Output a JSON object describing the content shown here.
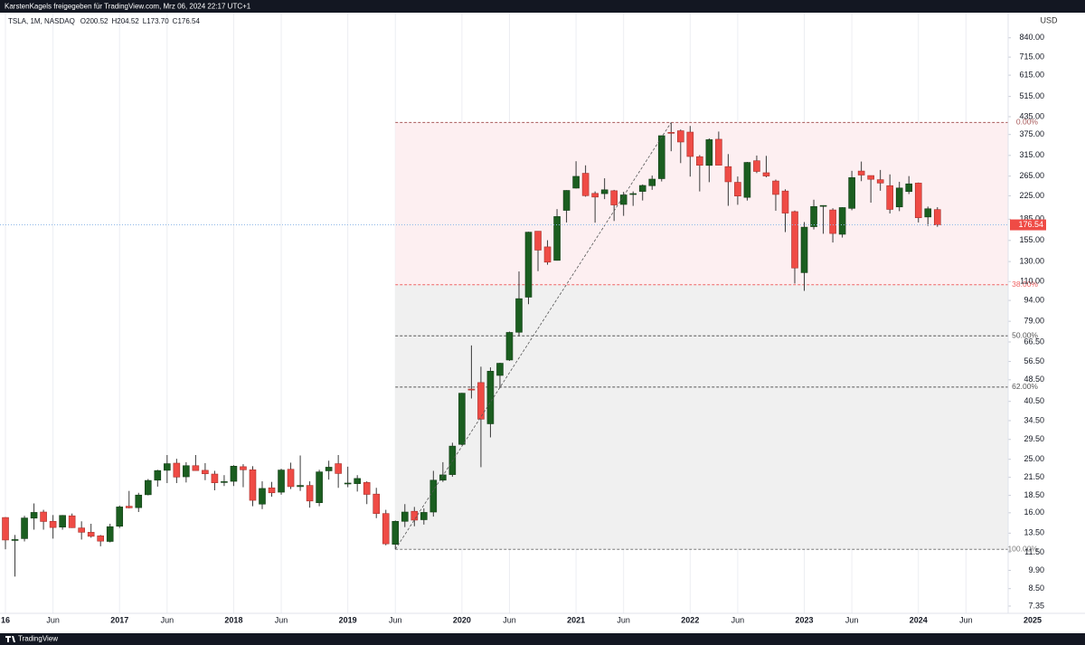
{
  "chart_data": {
    "type": "candlestick",
    "attribution": "KarstenKagels freigegeben für TradingView.com, Mrz 06, 2024 22:17 UTC+1",
    "brand": "TradingView",
    "symbol": "TSLA, 1M, NASDAQ",
    "ohlc_legend": [
      "O200.52",
      "H204.52",
      "L173.70",
      "C176.54"
    ],
    "currency": "USD",
    "x": [
      "2016-01",
      "2016-02",
      "2016-03",
      "2016-04",
      "2016-05",
      "2016-06",
      "2016-07",
      "2016-08",
      "2016-09",
      "2016-10",
      "2016-11",
      "2016-12",
      "2017-01",
      "2017-02",
      "2017-03",
      "2017-04",
      "2017-05",
      "2017-06",
      "2017-07",
      "2017-08",
      "2017-09",
      "2017-10",
      "2017-11",
      "2017-12",
      "2018-01",
      "2018-02",
      "2018-03",
      "2018-04",
      "2018-05",
      "2018-06",
      "2018-07",
      "2018-08",
      "2018-09",
      "2018-10",
      "2018-11",
      "2018-12",
      "2019-01",
      "2019-02",
      "2019-03",
      "2019-04",
      "2019-05",
      "2019-06",
      "2019-07",
      "2019-08",
      "2019-09",
      "2019-10",
      "2019-11",
      "2019-12",
      "2020-01",
      "2020-02",
      "2020-03",
      "2020-04",
      "2020-05",
      "2020-06",
      "2020-07",
      "2020-08",
      "2020-09",
      "2020-10",
      "2020-11",
      "2020-12",
      "2021-01",
      "2021-02",
      "2021-03",
      "2021-04",
      "2021-05",
      "2021-06",
      "2021-07",
      "2021-08",
      "2021-09",
      "2021-10",
      "2021-11",
      "2021-12",
      "2022-01",
      "2022-02",
      "2022-03",
      "2022-04",
      "2022-05",
      "2022-06",
      "2022-07",
      "2022-08",
      "2022-09",
      "2022-10",
      "2022-11",
      "2022-12",
      "2023-01",
      "2023-02",
      "2023-03",
      "2023-04",
      "2023-05",
      "2023-06",
      "2023-07",
      "2023-08",
      "2023-09",
      "2023-10",
      "2023-11",
      "2023-12",
      "2024-01",
      "2024-02",
      "2024-03"
    ],
    "open": [
      15.38,
      12.7,
      12.9,
      15.3,
      16.1,
      14.9,
      14.2,
      15.6,
      14.1,
      13.6,
      13.2,
      12.6,
      14.3,
      16.9,
      16.7,
      18.6,
      21.0,
      22.8,
      24.2,
      21.6,
      23.7,
      22.8,
      22.1,
      20.6,
      20.8,
      23.5,
      22.9,
      17.2,
      19.7,
      19.0,
      23.0,
      19.9,
      20.1,
      17.4,
      22.7,
      24.1,
      20.4,
      20.4,
      20.6,
      18.7,
      15.9,
      12.3,
      14.9,
      16.2,
      15.1,
      16.1,
      21.0,
      22.0,
      28.3,
      44.9,
      47.4,
      33.6,
      50.3,
      57.2,
      72.1,
      96.6,
      167.4,
      146.9,
      131.3,
      199.2,
      239.8,
      271.4,
      229.5,
      229.0,
      234.6,
      209.3,
      227.9,
      233.3,
      244.7,
      259.5,
      381.7,
      386.9,
      382.6,
      311.7,
      289.9,
      360.4,
      286.9,
      251.7,
      222.0,
      301.3,
      272.6,
      254.5,
      234.1,
      197.1,
      118.5,
      173.9,
      206.2,
      199.9,
      163.2,
      202.6,
      276.5,
      266.3,
      257.3,
      244.8,
      205.0,
      233.1,
      250.1,
      188.5,
      200.52
    ],
    "high": [
      15.43,
      13.3,
      15.6,
      17.3,
      16.4,
      15.7,
      15.7,
      15.9,
      14.9,
      14.6,
      13.3,
      14.6,
      17.0,
      19.2,
      18.9,
      21.2,
      22.9,
      25.9,
      25.1,
      24.4,
      25.9,
      24.2,
      22.7,
      21.9,
      23.8,
      24.0,
      23.6,
      20.8,
      20.7,
      23.1,
      24.3,
      25.8,
      20.8,
      22.9,
      24.7,
      25.9,
      23.5,
      21.9,
      20.8,
      19.7,
      16.4,
      15.0,
      17.2,
      16.8,
      16.6,
      22.7,
      24.4,
      28.7,
      43.5,
      64.6,
      54.1,
      53.8,
      55.9,
      72.5,
      119.7,
      166.7,
      167.5,
      155.3,
      201.3,
      235.7,
      300.1,
      290.0,
      233.3,
      260.3,
      236.3,
      232.4,
      233.3,
      247.3,
      266.3,
      371.7,
      414.5,
      390.9,
      402.7,
      315.9,
      363.0,
      384.3,
      318.5,
      264.2,
      298.3,
      314.7,
      313.8,
      257.5,
      237.4,
      198.9,
      180.7,
      217.7,
      207.8,
      202.7,
      204.5,
      277.0,
      299.3,
      266.5,
      279.0,
      268.9,
      252.8,
      265.1,
      251.3,
      205.6,
      204.52
    ],
    "low": [
      11.8,
      9.4,
      12.6,
      13.9,
      13.9,
      12.9,
      13.9,
      14.1,
      12.8,
      13.0,
      12.1,
      12.5,
      14.1,
      16.6,
      16.1,
      18.5,
      19.9,
      20.5,
      20.5,
      20.6,
      22.7,
      21.0,
      19.3,
      20.0,
      20.0,
      19.8,
      16.9,
      16.5,
      18.3,
      18.6,
      19.5,
      19.2,
      16.7,
      16.9,
      21.1,
      19.7,
      19.8,
      19.1,
      17.2,
      15.3,
      12.2,
      11.8,
      14.2,
      14.3,
      14.5,
      15.5,
      20.7,
      21.6,
      28.1,
      41.5,
      23.4,
      30.0,
      45.3,
      56.8,
      69.6,
      91.1,
      120.0,
      126.6,
      131.0,
      180.1,
      239.0,
      223.3,
      179.8,
      218.8,
      182.3,
      190.3,
      206.8,
      216.3,
      236.4,
      253.5,
      326.2,
      295.4,
      264.0,
      233.3,
      252.0,
      290.0,
      206.9,
      208.7,
      216.2,
      271.8,
      262.5,
      198.6,
      166.2,
      108.2,
      101.8,
      169.9,
      163.9,
      152.4,
      158.8,
      199.4,
      254.1,
      212.4,
      234.6,
      194.1,
      197.9,
      228.2,
      180.1,
      175.0,
      173.7
    ],
    "close": [
      12.75,
      12.8,
      15.32,
      16.05,
      14.88,
      14.15,
      15.65,
      14.13,
      13.6,
      13.15,
      12.63,
      14.25,
      16.8,
      16.67,
      18.55,
      20.95,
      22.75,
      24.1,
      21.55,
      23.7,
      22.75,
      22.15,
      20.55,
      20.75,
      23.6,
      22.9,
      17.75,
      19.6,
      18.9,
      22.85,
      19.9,
      20.1,
      17.65,
      22.5,
      23.4,
      22.2,
      20.5,
      21.3,
      18.65,
      15.9,
      12.35,
      14.9,
      16.1,
      15.05,
      16.05,
      21.0,
      21.95,
      27.9,
      43.37,
      44.53,
      34.93,
      52.1,
      55.67,
      71.99,
      95.4,
      166.1,
      143.0,
      129.35,
      189.2,
      235.2,
      264.5,
      225.2,
      222.6,
      236.5,
      208.4,
      226.6,
      229.1,
      245.2,
      258.5,
      371.3,
      381.6,
      352.3,
      312.2,
      290.1,
      359.2,
      290.3,
      252.8,
      224.5,
      297.1,
      275.6,
      265.3,
      227.5,
      194.7,
      123.2,
      173.2,
      205.7,
      207.5,
      164.3,
      203.9,
      261.8,
      267.4,
      258.1,
      250.2,
      200.8,
      240.1,
      248.5,
      187.3,
      201.9,
      176.54
    ],
    "up_color": "#1b5e20",
    "down_color": "#ef4b45",
    "wick_color": "#3a3a3a",
    "log_scale": true,
    "grid": "x",
    "xlim": [
      "2015-12",
      "2025-03"
    ],
    "ylim": [
      6.97,
      1028
    ],
    "yticks": [
      7.35,
      {
        "value": 8.5,
        "label": "8.50"
      },
      {
        "value": 9.9,
        "label": "9.90"
      },
      {
        "value": 11.5,
        "label": "11.50"
      },
      {
        "value": 13.5,
        "label": "13.50"
      },
      {
        "value": 16,
        "label": "16.00"
      },
      {
        "value": 18.5,
        "label": "18.50"
      },
      {
        "value": 21.5,
        "label": "21.50"
      },
      {
        "value": 25,
        "label": "25.00"
      },
      {
        "value": 29.5,
        "label": "29.50"
      },
      {
        "value": 34.5,
        "label": "34.50"
      },
      {
        "value": 40.5,
        "label": "40.50"
      },
      {
        "value": 48.5,
        "label": "48.50"
      },
      {
        "value": 56.5,
        "label": "56.50"
      },
      {
        "value": 66.5,
        "label": "66.50"
      },
      {
        "value": 79,
        "label": "79.00"
      },
      {
        "value": 94,
        "label": "94.00"
      },
      {
        "value": 110,
        "label": "110.00"
      },
      {
        "value": 130,
        "label": "130.00"
      },
      {
        "value": 155,
        "label": "155.00"
      },
      {
        "value": 185,
        "label": "185.00"
      },
      {
        "value": 225,
        "label": "225.00"
      },
      {
        "value": 265,
        "label": "265.00"
      },
      {
        "value": 315,
        "label": "315.00"
      },
      {
        "value": 375,
        "label": "375.00"
      },
      {
        "value": 435,
        "label": "435.00"
      },
      {
        "value": 515,
        "label": "515.00"
      },
      {
        "value": 615,
        "label": "615.00"
      },
      {
        "value": 715,
        "label": "715.00"
      },
      {
        "value": 840,
        "label": "840.00"
      }
    ],
    "xticks": [
      {
        "value": "2016-01",
        "label": "16"
      },
      {
        "value": "2016-06",
        "label": "Jun"
      },
      {
        "value": "2017-01",
        "label": "2017"
      },
      {
        "value": "2017-06",
        "label": "Jun"
      },
      {
        "value": "2018-01",
        "label": "2018"
      },
      {
        "value": "2018-06",
        "label": "Jun"
      },
      {
        "value": "2019-01",
        "label": "2019"
      },
      {
        "value": "2019-06",
        "label": "Jun"
      },
      {
        "value": "2020-01",
        "label": "2020"
      },
      {
        "value": "2020-06",
        "label": "Jun"
      },
      {
        "value": "2021-01",
        "label": "2021"
      },
      {
        "value": "2021-06",
        "label": "Jun"
      },
      {
        "value": "2022-01",
        "label": "2022"
      },
      {
        "value": "2022-06",
        "label": "Jun"
      },
      {
        "value": "2023-01",
        "label": "2023"
      },
      {
        "value": "2023-06",
        "label": "Jun"
      },
      {
        "value": "2024-01",
        "label": "2024"
      },
      {
        "value": "2024-06",
        "label": "Jun"
      },
      {
        "value": "2025-01",
        "label": "2025"
      }
    ],
    "last_price": 176.54,
    "last_price_color": "#ef4b45",
    "fib": {
      "from": "2019-06",
      "to": "2021-11",
      "low": 11.8,
      "high": 414.5,
      "levels": [
        {
          "value": 0,
          "label": "0.00%",
          "color": "#a85a5a",
          "fill": "#fdeff1"
        },
        {
          "value": 38,
          "label": "38.00%",
          "color": "#f06464",
          "fill": "#f0f0f0"
        },
        {
          "value": 50,
          "label": "50.00%",
          "color": "#555555",
          "fill": "#f0f0f0"
        },
        {
          "value": 62,
          "label": "62.00%",
          "color": "#555555",
          "fill": "#f0f0f0"
        },
        {
          "value": 100,
          "label": "100.00%",
          "color": "#7a7a7a"
        }
      ]
    }
  }
}
